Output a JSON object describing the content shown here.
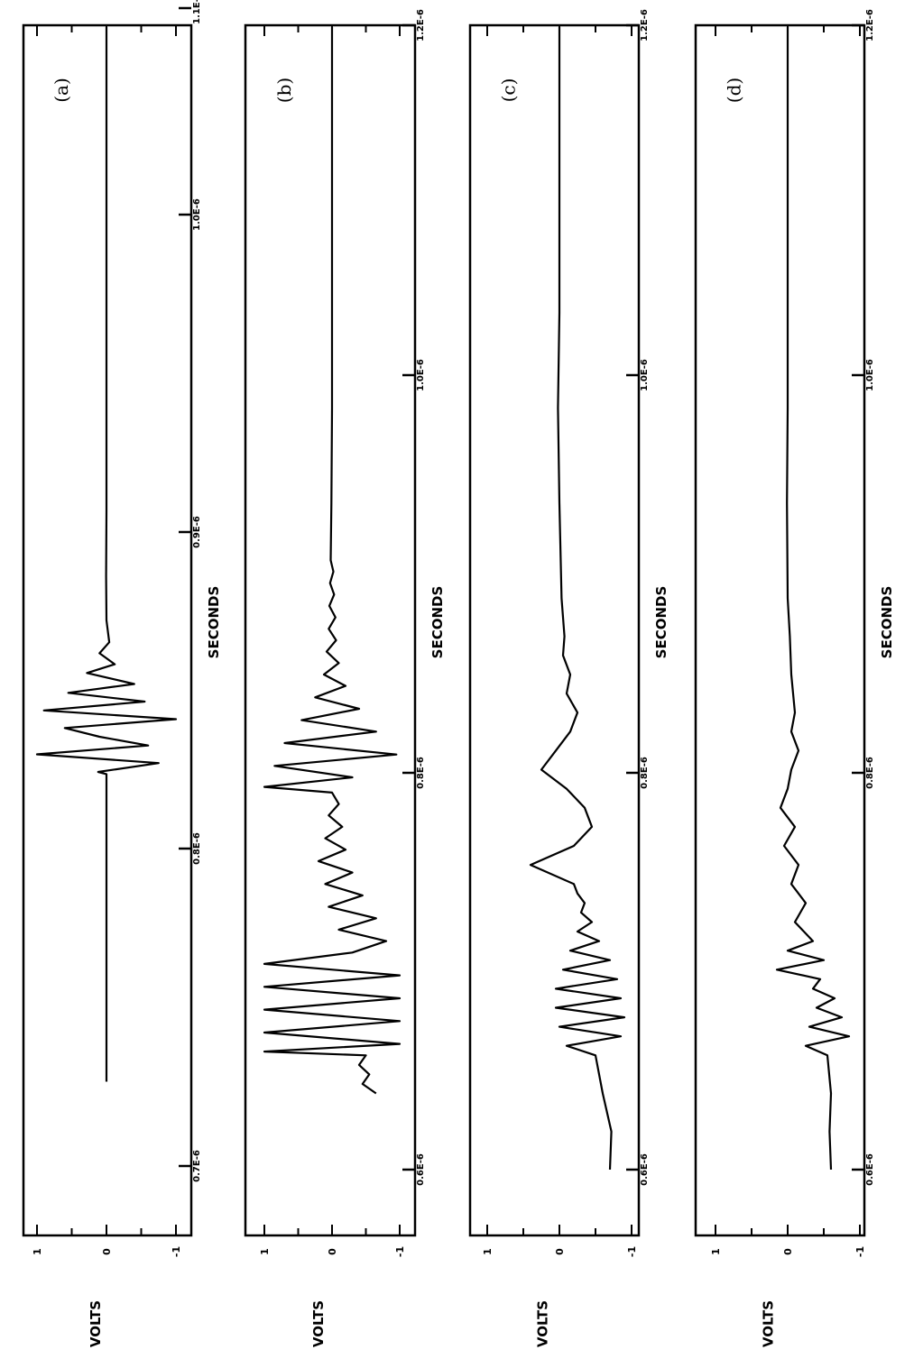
{
  "chart_data": [
    {
      "type": "line",
      "panel_label": "(a)",
      "xlabel": "SECONDS",
      "ylabel": "VOLTS",
      "ylim": [
        -1.2,
        1.2
      ],
      "yticks": [
        "1",
        "0",
        "-1"
      ],
      "xticks": [
        "0.7E-6",
        "0.8E-6",
        "0.9E-6",
        "1.0E-6",
        "1.1E-6"
      ],
      "series": [
        {
          "x": [
            0.64,
            0.65,
            0.7,
            0.75,
            0.78,
            0.781,
            0.785,
            0.789,
            0.793,
            0.797,
            0.801,
            0.805,
            0.809,
            0.813,
            0.817,
            0.821,
            0.826,
            0.83,
            0.835,
            0.84,
            0.85,
            0.87,
            0.9,
            0.95,
            1.0,
            1.05,
            1.1,
            1.12
          ],
          "y": [
            0,
            0,
            0,
            0,
            0,
            0.12,
            -0.75,
            1.0,
            -0.6,
            0.1,
            0.6,
            -1.0,
            0.9,
            -0.55,
            0.55,
            -0.4,
            0.28,
            -0.12,
            0.1,
            -0.04,
            0,
            0.005,
            0,
            0,
            0,
            0,
            0,
            0
          ]
        }
      ]
    },
    {
      "type": "line",
      "panel_label": "(b)",
      "xlabel": "SECONDS",
      "ylabel": "VOLTS",
      "ylim": [
        -1.2,
        1.2
      ],
      "yticks": [
        "1",
        "0",
        "-1"
      ],
      "xticks": [
        "0.6E-6",
        "0.8E-6",
        "1.0E-6",
        "1.2E-6"
      ],
      "series": [
        {
          "x": [
            0.64,
            0.645,
            0.65,
            0.655,
            0.66,
            0.662,
            0.666,
            0.672,
            0.678,
            0.684,
            0.69,
            0.696,
            0.702,
            0.708,
            0.714,
            0.72,
            0.726,
            0.732,
            0.738,
            0.744,
            0.75,
            0.756,
            0.762,
            0.768,
            0.774,
            0.78,
            0.786,
            0.792,
            0.798,
            0.801,
            0.806,
            0.812,
            0.818,
            0.824,
            0.83,
            0.836,
            0.842,
            0.848,
            0.854,
            0.86,
            0.866,
            0.872,
            0.878,
            0.884,
            0.89,
            0.896,
            0.902,
            0.908,
            0.914,
            0.92,
            0.95,
            1.0,
            1.05,
            1.1,
            1.2
          ],
          "y": [
            -0.65,
            -0.45,
            -0.55,
            -0.4,
            -0.5,
            1.0,
            -1.0,
            1.0,
            -1.0,
            1.0,
            -1.0,
            1.0,
            -1.0,
            1.0,
            -0.3,
            -0.8,
            -0.1,
            -0.65,
            0.05,
            -0.45,
            0.1,
            -0.3,
            0.2,
            -0.2,
            0.1,
            -0.15,
            0.05,
            -0.1,
            0.0,
            1.0,
            -0.3,
            0.85,
            -0.95,
            0.7,
            -0.65,
            0.45,
            -0.4,
            0.25,
            -0.2,
            0.12,
            -0.1,
            0.08,
            -0.06,
            0.05,
            -0.05,
            0.04,
            -0.03,
            0.03,
            -0.02,
            0.02,
            0.01,
            0,
            0,
            0,
            0
          ]
        }
      ]
    },
    {
      "type": "line",
      "panel_label": "(c)",
      "xlabel": "SECONDS",
      "ylabel": "VOLTS",
      "ylim": [
        -1.2,
        1.2
      ],
      "yticks": [
        "1",
        "0",
        "-1"
      ],
      "xticks": [
        "0.6E-6",
        "0.8E-6",
        "1.0E-6",
        "1.2E-6"
      ],
      "series": [
        {
          "x": [
            0.6,
            0.62,
            0.64,
            0.66,
            0.665,
            0.67,
            0.675,
            0.68,
            0.685,
            0.69,
            0.695,
            0.7,
            0.705,
            0.71,
            0.715,
            0.72,
            0.725,
            0.73,
            0.735,
            0.74,
            0.745,
            0.75,
            0.76,
            0.77,
            0.78,
            0.79,
            0.8,
            0.81,
            0.82,
            0.83,
            0.84,
            0.85,
            0.86,
            0.87,
            0.88,
            0.9,
            0.95,
            1.0,
            1.05,
            1.1,
            1.2
          ],
          "y": [
            -0.7,
            -0.72,
            -0.6,
            -0.5,
            -0.1,
            -0.85,
            0.0,
            -0.9,
            0.05,
            -0.85,
            0.05,
            -0.8,
            -0.05,
            -0.7,
            -0.15,
            -0.55,
            -0.25,
            -0.45,
            -0.3,
            -0.35,
            -0.25,
            -0.2,
            0.4,
            -0.2,
            -0.45,
            -0.35,
            -0.1,
            0.25,
            0.05,
            -0.15,
            -0.25,
            -0.1,
            -0.15,
            -0.05,
            -0.07,
            -0.03,
            0.0,
            0.02,
            0,
            0,
            0
          ]
        }
      ]
    },
    {
      "type": "line",
      "panel_label": "(d)",
      "xlabel": "SECONDS",
      "ylabel": "VOLTS",
      "ylim": [
        -1.2,
        1.2
      ],
      "yticks": [
        "1",
        "0",
        "-1"
      ],
      "xticks": [
        "0.6E-6",
        "0.8E-6",
        "1.0E-6",
        "1.2E-6"
      ],
      "series": [
        {
          "x": [
            0.6,
            0.62,
            0.64,
            0.66,
            0.665,
            0.67,
            0.675,
            0.68,
            0.685,
            0.69,
            0.695,
            0.7,
            0.705,
            0.71,
            0.715,
            0.72,
            0.73,
            0.74,
            0.75,
            0.76,
            0.77,
            0.78,
            0.79,
            0.8,
            0.81,
            0.82,
            0.83,
            0.84,
            0.86,
            0.88,
            0.9,
            0.95,
            1.0,
            1.05,
            1.1,
            1.2
          ],
          "y": [
            -0.6,
            -0.58,
            -0.6,
            -0.55,
            -0.25,
            -0.85,
            -0.3,
            -0.75,
            -0.4,
            -0.65,
            -0.35,
            -0.45,
            0.15,
            -0.5,
            0.0,
            -0.35,
            -0.1,
            -0.25,
            -0.05,
            -0.15,
            0.05,
            -0.1,
            0.1,
            0.0,
            -0.05,
            -0.15,
            -0.05,
            -0.1,
            -0.05,
            -0.03,
            0.0,
            0.01,
            0,
            0,
            0,
            0
          ]
        }
      ]
    }
  ]
}
